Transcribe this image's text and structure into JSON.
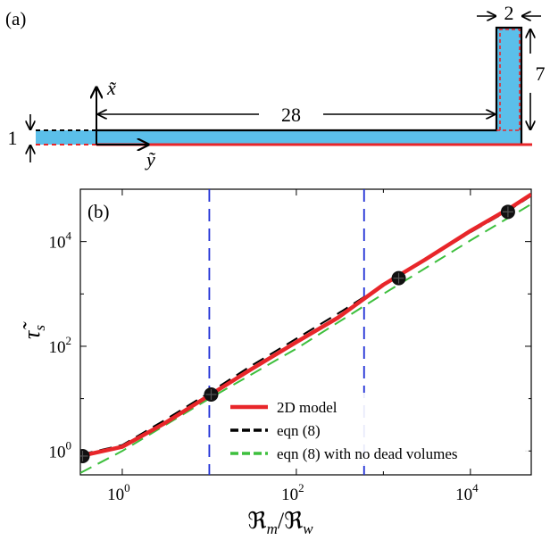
{
  "panel_a": {
    "label": "(a)",
    "dim_length": "28",
    "dim_width": "2",
    "dim_height": "7",
    "dim_channel": "1",
    "axis_x": "x̃",
    "axis_y": "ỹ",
    "colors": {
      "fill": "#5bbfea",
      "wall": "#e8262a",
      "axis": "#000000"
    }
  },
  "chart_data": {
    "type": "line",
    "panel_label": "(b)",
    "xscale": "log",
    "yscale": "log",
    "xlim": [
      0.33,
      50000
    ],
    "ylim": [
      0.35,
      100000
    ],
    "xlabel": "ℜm/ℜw",
    "ylabel": "τ̃s",
    "xticks": [
      1,
      100,
      10000
    ],
    "yticks": [
      1,
      100,
      10000
    ],
    "xtick_labels": [
      {
        "base": "10",
        "exp": "0"
      },
      {
        "base": "10",
        "exp": "2"
      },
      {
        "base": "10",
        "exp": "4"
      }
    ],
    "ytick_labels": [
      {
        "base": "10",
        "exp": "0"
      },
      {
        "base": "10",
        "exp": "2"
      },
      {
        "base": "10",
        "exp": "4"
      }
    ],
    "vlines": [
      10,
      600
    ],
    "series": [
      {
        "name": "2D model",
        "color": "#e8262a",
        "style": "solid",
        "x": [
          0.33,
          1,
          3,
          10,
          30,
          100,
          300,
          1000,
          3000,
          10000,
          30000,
          50000
        ],
        "y": [
          0.8,
          1.2,
          3.3,
          11.5,
          36,
          120,
          350,
          1500,
          4500,
          16000,
          46000,
          80000
        ]
      },
      {
        "name": "eqn (8)",
        "color": "#000000",
        "style": "dashed",
        "x": [
          0.33,
          1,
          3,
          10,
          30,
          100,
          300,
          1000,
          3000,
          10000,
          30000,
          50000
        ],
        "y": [
          0.85,
          1.3,
          3.8,
          13,
          42,
          140,
          420,
          1500,
          4400,
          15000,
          43000,
          75000
        ]
      },
      {
        "name": "eqn (8) with no dead volumes",
        "color": "#3dbf3d",
        "style": "dashed",
        "x": [
          0.33,
          1,
          10,
          100,
          1000,
          10000,
          50000
        ],
        "y": [
          0.38,
          1.0,
          10,
          90,
          1000,
          10500,
          52000
        ]
      }
    ],
    "markers": {
      "x": [
        0.35,
        10.5,
        1500,
        27000
      ],
      "y": [
        0.8,
        12,
        2000,
        37000
      ]
    },
    "legend_position": "lower-right"
  }
}
